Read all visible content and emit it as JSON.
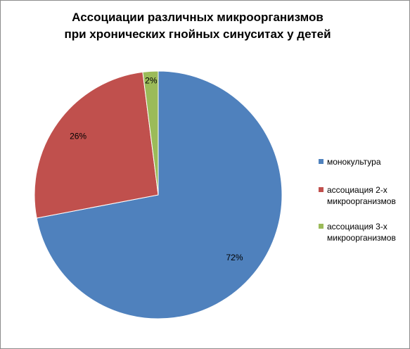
{
  "chart_data": {
    "type": "pie",
    "title": "Ассоциации различных микроорганизмов при хронических гнойных синуситах у детей",
    "categories": [
      "монокультура",
      "ассоциация 2-х микроорганизмов",
      "ассоциация 3-х микроорганизмов"
    ],
    "values": [
      72,
      26,
      2
    ],
    "value_labels": [
      "72%",
      "26%",
      "2%"
    ],
    "colors": [
      "#4f81bd",
      "#c0504d",
      "#9bbb59"
    ],
    "legend": "right"
  }
}
